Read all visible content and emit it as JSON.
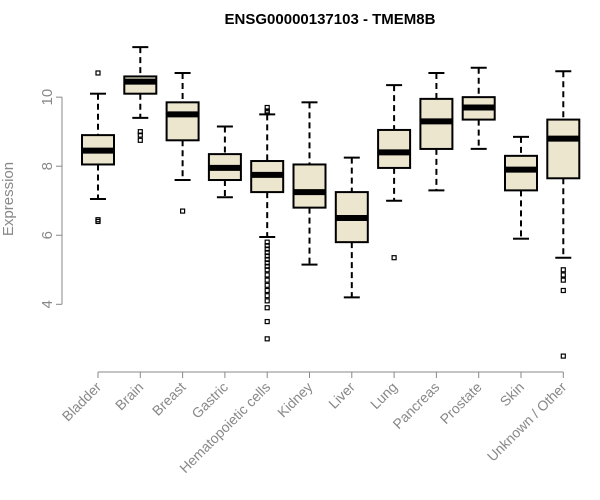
{
  "chart_data": {
    "type": "boxplot",
    "title": "ENSG00000137103 - TMEM8B",
    "ylabel": "Expression",
    "xlabel": "",
    "ylim": [
      2.3,
      11.8
    ],
    "yticks": [
      4,
      6,
      8,
      10
    ],
    "colors": {
      "box_fill": "#ede6cf",
      "stroke": "#000000",
      "axis": "#888888"
    },
    "categories": [
      "Bladder",
      "Brain",
      "Breast",
      "Gastric",
      "Hematopoietic cells",
      "Kidney",
      "Liver",
      "Lung",
      "Pancreas",
      "Prostate",
      "Skin",
      "Unknown / Other"
    ],
    "boxes": [
      {
        "whisker_low": 7.05,
        "q1": 8.05,
        "median": 8.45,
        "q3": 8.9,
        "whisker_high": 10.1,
        "outliers": [
          6.4,
          6.45,
          10.7
        ]
      },
      {
        "whisker_low": 9.4,
        "q1": 10.1,
        "median": 10.45,
        "q3": 10.6,
        "whisker_high": 11.45,
        "outliers": [
          8.75,
          8.9,
          9.0
        ]
      },
      {
        "whisker_low": 7.6,
        "q1": 8.75,
        "median": 9.5,
        "q3": 9.85,
        "whisker_high": 10.7,
        "outliers": [
          6.7
        ]
      },
      {
        "whisker_low": 7.1,
        "q1": 7.6,
        "median": 7.95,
        "q3": 8.35,
        "whisker_high": 9.15,
        "outliers": []
      },
      {
        "whisker_low": 5.95,
        "q1": 7.25,
        "median": 7.75,
        "q3": 8.15,
        "whisker_high": 9.5,
        "outliers": [
          9.55,
          9.6,
          9.7,
          3.0,
          3.5,
          3.9,
          4.1,
          4.25,
          4.4,
          4.55,
          4.7,
          4.85,
          5.0,
          5.1,
          5.2,
          5.3,
          5.4,
          5.5,
          5.6,
          5.7,
          5.8
        ]
      },
      {
        "whisker_low": 5.15,
        "q1": 6.8,
        "median": 7.25,
        "q3": 8.05,
        "whisker_high": 9.85,
        "outliers": []
      },
      {
        "whisker_low": 4.2,
        "q1": 5.8,
        "median": 6.5,
        "q3": 7.25,
        "whisker_high": 8.25,
        "outliers": []
      },
      {
        "whisker_low": 7.0,
        "q1": 7.95,
        "median": 8.4,
        "q3": 9.05,
        "whisker_high": 10.35,
        "outliers": [
          5.35
        ]
      },
      {
        "whisker_low": 7.3,
        "q1": 8.5,
        "median": 9.3,
        "q3": 9.95,
        "whisker_high": 10.7,
        "outliers": []
      },
      {
        "whisker_low": 8.5,
        "q1": 9.35,
        "median": 9.7,
        "q3": 10.0,
        "whisker_high": 10.85,
        "outliers": []
      },
      {
        "whisker_low": 5.9,
        "q1": 7.3,
        "median": 7.9,
        "q3": 8.3,
        "whisker_high": 8.85,
        "outliers": []
      },
      {
        "whisker_low": 5.35,
        "q1": 7.65,
        "median": 8.8,
        "q3": 9.35,
        "whisker_high": 10.75,
        "outliers": [
          5.0,
          4.85,
          4.7,
          4.4,
          2.5
        ]
      }
    ]
  }
}
